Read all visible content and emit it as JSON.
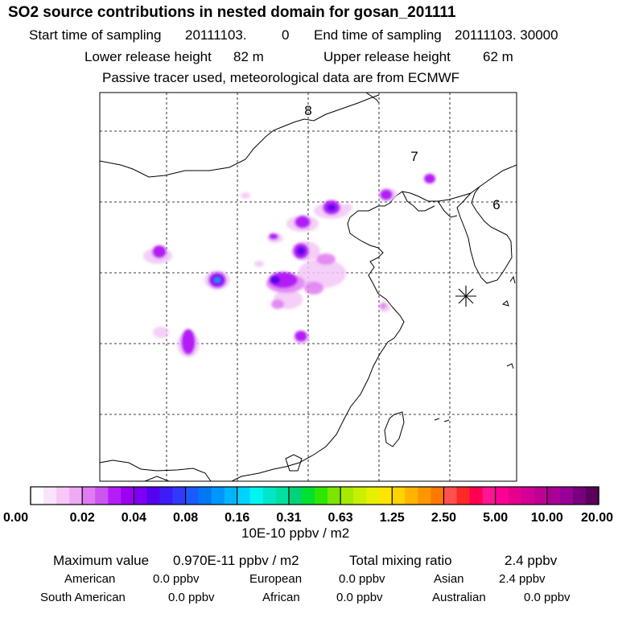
{
  "title": "SO2 source contributions in nested domain for gosan_201111",
  "sampling": {
    "start_label": "Start time of sampling",
    "start_value": "20111103.",
    "start_hour": "0",
    "end_label": "End time of sampling",
    "end_value": "20111103. 30000"
  },
  "release": {
    "lower_label": "Lower release height",
    "lower_value": "82 m",
    "upper_label": "Upper release height",
    "upper_value": "62 m"
  },
  "tracer_note": "Passive tracer used, meteorological data are from ECMWF",
  "map": {
    "track_labels": [
      "8",
      "7",
      "6"
    ],
    "receptor_marker": "asterisk-icon"
  },
  "colorbar": {
    "tick_labels": [
      "0.00",
      "0.02",
      "0.04",
      "0.08",
      "0.16",
      "0.31",
      "0.63",
      "1.25",
      "2.50",
      "5.00",
      "10.00",
      "20.00"
    ],
    "colors": [
      "#ffffff",
      "#fbe4fb",
      "#f5c8f7",
      "#efaaf3",
      "#e07cf2",
      "#cc55f2",
      "#b41ef5",
      "#9c00f0",
      "#7d00f2",
      "#5500ee",
      "#3c1cf7",
      "#3239ff",
      "#1a5aff",
      "#0078f5",
      "#0096ff",
      "#00b4ff",
      "#00d2ff",
      "#00f5f0",
      "#00e6c8",
      "#00e0a0",
      "#00d278",
      "#00e030",
      "#2ee600",
      "#7ce600",
      "#a6ea00",
      "#c8f000",
      "#e8f000",
      "#ffe600",
      "#ffd200",
      "#ffb400",
      "#ff9600",
      "#ff7800",
      "#ff5050",
      "#ff2828",
      "#ff0050",
      "#ff1493",
      "#ff0096",
      "#e6008c",
      "#d20096",
      "#be0096",
      "#aa0096",
      "#960096",
      "#78007d",
      "#5a005a"
    ],
    "unit": "10E-10 ppbv / m2"
  },
  "summary": {
    "max_label": "Maximum value",
    "max_value": "0.970E-11 ppbv / m2",
    "total_label": "Total mixing ratio",
    "total_value": "2.4 ppbv"
  },
  "regions": [
    {
      "name": "American",
      "value": "0.0 ppbv"
    },
    {
      "name": "European",
      "value": "0.0 ppbv"
    },
    {
      "name": "Asian",
      "value": "2.4 ppbv"
    },
    {
      "name": "South American",
      "value": "0.0 ppbv"
    },
    {
      "name": "African",
      "value": "0.0 ppbv"
    },
    {
      "name": "Australian",
      "value": "0.0 ppbv"
    }
  ]
}
